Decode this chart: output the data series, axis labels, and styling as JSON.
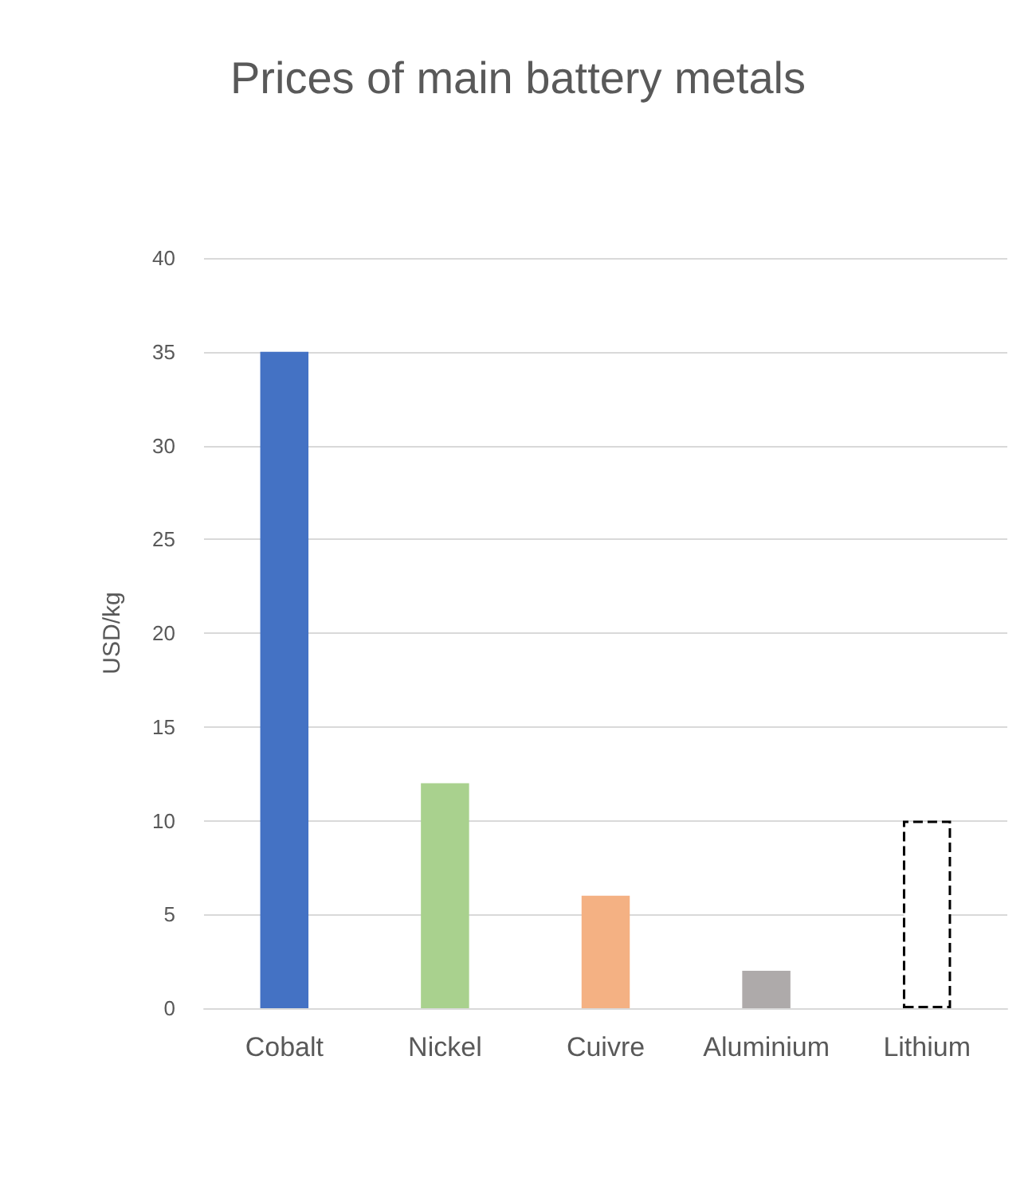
{
  "chart_data": {
    "type": "bar",
    "title": "Prices of main battery metals",
    "ylabel": "USD/kg",
    "categories": [
      "Cobalt",
      "Nickel",
      "Cuivre",
      "Aluminium",
      "Lithium"
    ],
    "series": [
      {
        "colors": [
          "#4472c4",
          "#a9d18e",
          "#f4b183",
          "#aeaaaa",
          null
        ],
        "values": [
          35,
          12,
          6,
          2,
          null
        ]
      },
      {
        "color": "#ffffff",
        "line_style": "dashed",
        "values": [
          null,
          null,
          null,
          null,
          10
        ]
      }
    ],
    "ylim": [
      0,
      40
    ],
    "yticks": [
      0,
      5,
      10,
      15,
      20,
      25,
      30,
      35,
      40
    ],
    "grid": "y"
  }
}
